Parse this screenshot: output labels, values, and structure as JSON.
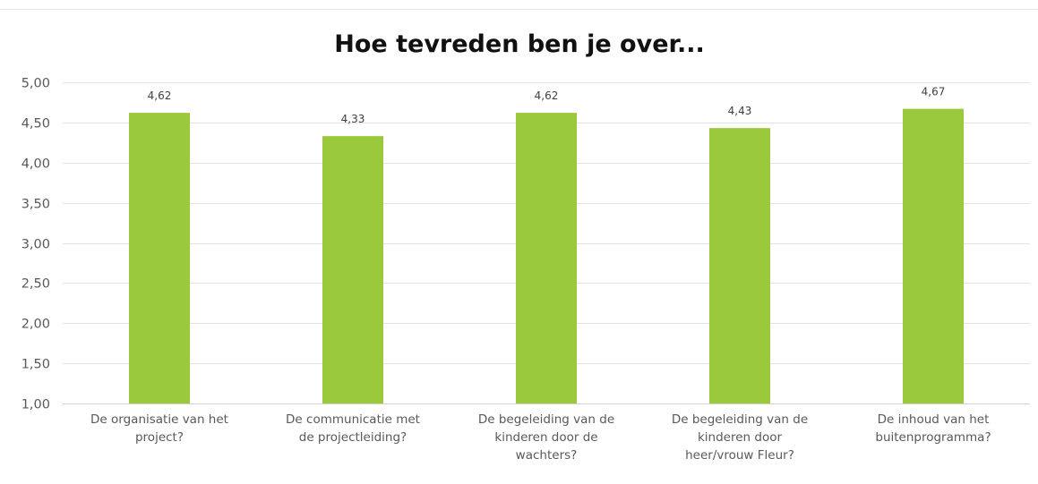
{
  "chart_data": {
    "type": "bar",
    "title": "Hoe tevreden ben je over...",
    "xlabel": "",
    "ylabel": "",
    "ylim": [
      1.0,
      5.0
    ],
    "yticks": [
      "1,00",
      "1,50",
      "2,00",
      "2,50",
      "3,00",
      "3,50",
      "4,00",
      "4,50",
      "5,00"
    ],
    "ytick_values": [
      1.0,
      1.5,
      2.0,
      2.5,
      3.0,
      3.5,
      4.0,
      4.5,
      5.0
    ],
    "grid": true,
    "legend": "none",
    "bar_color": "#9ACA3C",
    "categories": [
      [
        "De organisatie van het",
        "project?"
      ],
      [
        "De communicatie met",
        "de projectleiding?"
      ],
      [
        "De begeleiding van de",
        "kinderen door de",
        "wachters?"
      ],
      [
        "De begeleiding van de",
        "kinderen door",
        "heer/vrouw Fleur?"
      ],
      [
        "De inhoud van het",
        "buitenprogramma?"
      ]
    ],
    "values": [
      4.62,
      4.33,
      4.62,
      4.43,
      4.67
    ],
    "data_labels": [
      "4,62",
      "4,33",
      "4,62",
      "4,43",
      "4,67"
    ]
  }
}
